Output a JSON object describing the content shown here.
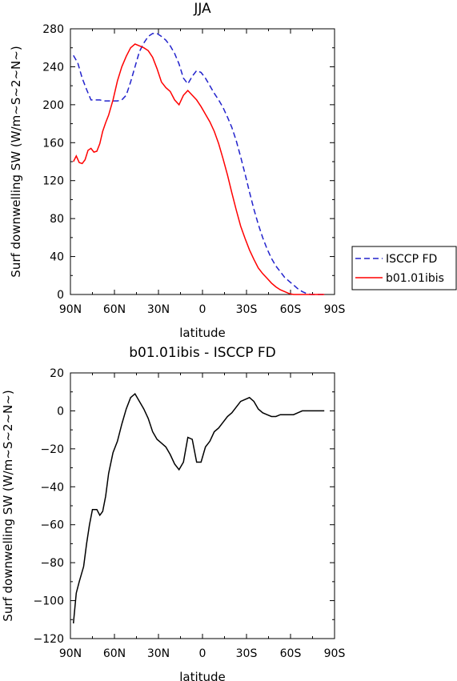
{
  "chart_data": [
    {
      "type": "line",
      "title": "JJA",
      "xlabel": "latitude",
      "ylabel": "Surf downwelling SW (W/m~S~2~N~)",
      "xlim": [
        90,
        -90
      ],
      "ylim": [
        0,
        280
      ],
      "x_ticks": [
        "90N",
        "60N",
        "30N",
        "0",
        "30S",
        "60S",
        "90S"
      ],
      "y_ticks": [
        "0",
        "40",
        "80",
        "120",
        "160",
        "200",
        "240",
        "280"
      ],
      "legend": "right",
      "series": [
        {
          "name": "ISCCP FD",
          "color": "#2222cc",
          "dash": "dashed",
          "x": [
            88,
            85,
            82,
            79,
            76,
            73,
            70,
            67,
            64,
            61,
            58,
            55,
            52,
            49,
            46,
            43,
            40,
            37,
            34,
            31,
            28,
            25,
            22,
            19,
            16,
            13,
            10,
            7,
            4,
            1,
            -2,
            -5,
            -8,
            -11,
            -14,
            -17,
            -20,
            -23,
            -26,
            -29,
            -32,
            -35,
            -38,
            -41,
            -44,
            -47,
            -50,
            -53,
            -56,
            -59,
            -62,
            -65,
            -68,
            -71,
            -74,
            -77,
            -80,
            -83
          ],
          "values": [
            252,
            244,
            228,
            216,
            205,
            205,
            205,
            204,
            204,
            204,
            204,
            205,
            210,
            224,
            240,
            256,
            265,
            272,
            275,
            275,
            272,
            268,
            262,
            254,
            243,
            228,
            222,
            230,
            236,
            234,
            228,
            220,
            212,
            205,
            197,
            187,
            176,
            162,
            145,
            127,
            108,
            90,
            74,
            60,
            48,
            38,
            30,
            24,
            18,
            14,
            10,
            6,
            3,
            1,
            0,
            0,
            0,
            0
          ]
        },
        {
          "name": "b01.01ibis",
          "color": "#ff0000",
          "dash": "solid",
          "x": [
            88,
            86,
            84,
            82,
            80,
            78,
            76,
            74,
            72,
            70,
            68,
            66,
            64,
            61,
            58,
            55,
            52,
            49,
            46,
            43,
            40,
            37,
            34,
            31,
            28,
            25,
            22,
            19,
            16,
            13,
            10,
            7,
            4,
            1,
            -2,
            -5,
            -8,
            -11,
            -14,
            -17,
            -20,
            -23,
            -26,
            -29,
            -32,
            -35,
            -38,
            -41,
            -44,
            -47,
            -50,
            -53,
            -56,
            -59,
            -62,
            -65,
            -68,
            -71,
            -74,
            -77,
            -80,
            -83
          ],
          "values": [
            140,
            146,
            139,
            138,
            142,
            152,
            154,
            150,
            151,
            159,
            172,
            181,
            189,
            205,
            225,
            240,
            251,
            260,
            264,
            262,
            260,
            257,
            250,
            238,
            224,
            218,
            214,
            205,
            200,
            210,
            215,
            210,
            205,
            198,
            190,
            182,
            172,
            159,
            143,
            126,
            107,
            89,
            72,
            59,
            47,
            37,
            28,
            22,
            17,
            12,
            8,
            5,
            3,
            1,
            0,
            0,
            0,
            0,
            0,
            0,
            0,
            0
          ]
        }
      ]
    },
    {
      "type": "line",
      "title": "b01.01ibis - ISCCP FD",
      "xlabel": "latitude",
      "ylabel": "Surf downwelling SW (W/m~S~2~N~)",
      "xlim": [
        90,
        -90
      ],
      "ylim": [
        -120,
        20
      ],
      "x_ticks": [
        "90N",
        "60N",
        "30N",
        "0",
        "30S",
        "60S",
        "90S"
      ],
      "y_ticks": [
        "20",
        "0",
        "−20",
        "−40",
        "−60",
        "−80",
        "−100",
        "−120"
      ],
      "series": [
        {
          "color": "#000000",
          "dash": "solid",
          "x": [
            88,
            86,
            84,
            81,
            79,
            77,
            75,
            72,
            70,
            68,
            66,
            64,
            61,
            58,
            55,
            52,
            49,
            46,
            43,
            40,
            37,
            34,
            31,
            28,
            25,
            22,
            19,
            16,
            13,
            10,
            7,
            4,
            1,
            -2,
            -5,
            -8,
            -11,
            -14,
            -17,
            -20,
            -23,
            -26,
            -29,
            -32,
            -35,
            -38,
            -41,
            -44,
            -47,
            -50,
            -53,
            -56,
            -59,
            -62,
            -65,
            -68,
            -71,
            -74,
            -77,
            -80,
            -83
          ],
          "values": [
            -112,
            -96,
            -90,
            -82,
            -70,
            -60,
            -52,
            -52,
            -55,
            -53,
            -45,
            -33,
            -22,
            -16,
            -7,
            1,
            7,
            9,
            5,
            1,
            -4,
            -11,
            -15,
            -17,
            -19,
            -23,
            -28,
            -31,
            -27,
            -14,
            -15,
            -27,
            -27,
            -19,
            -16,
            -11,
            -9,
            -6,
            -3,
            -1,
            2,
            5,
            6,
            7,
            5,
            1,
            -1,
            -2,
            -3,
            -3,
            -2,
            -2,
            -2,
            -2,
            -1,
            0,
            0,
            0,
            0,
            0,
            0
          ]
        }
      ]
    }
  ]
}
